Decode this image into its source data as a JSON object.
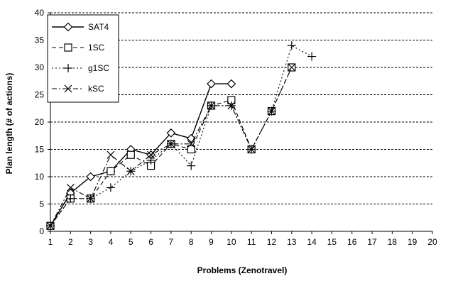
{
  "chart_data": {
    "type": "line",
    "xlabel": "Problems (Zenotravel)",
    "ylabel": "Plan length (# of actions)",
    "xlim": [
      1,
      20
    ],
    "ylim": [
      0,
      40
    ],
    "x_ticks": [
      1,
      2,
      3,
      4,
      5,
      6,
      7,
      8,
      9,
      10,
      11,
      12,
      13,
      14,
      15,
      16,
      17,
      18,
      19,
      20
    ],
    "y_ticks": [
      0,
      5,
      10,
      15,
      20,
      25,
      30,
      35,
      40
    ],
    "grid": "horizontal dashed",
    "legend_position": "top-left",
    "series": [
      {
        "name": "SAT4",
        "marker": "diamond",
        "line": "solid",
        "points": [
          [
            1,
            1
          ],
          [
            2,
            7
          ],
          [
            3,
            10
          ],
          [
            4,
            11
          ],
          [
            5,
            15
          ],
          [
            6,
            14
          ],
          [
            7,
            18
          ],
          [
            8,
            17
          ],
          [
            9,
            27
          ],
          [
            10,
            27
          ]
        ]
      },
      {
        "name": "1SC",
        "marker": "square",
        "line": "dashed",
        "points": [
          [
            1,
            1
          ],
          [
            2,
            6
          ],
          [
            3,
            6
          ],
          [
            4,
            11
          ],
          [
            5,
            14
          ],
          [
            6,
            12
          ],
          [
            7,
            16
          ],
          [
            8,
            15
          ],
          [
            9,
            23
          ],
          [
            10,
            24
          ],
          [
            11,
            15
          ],
          [
            12,
            22
          ],
          [
            13,
            30
          ]
        ]
      },
      {
        "name": "g1SC",
        "marker": "plus",
        "line": "dotted",
        "points": [
          [
            1,
            1
          ],
          [
            2,
            6
          ],
          [
            3,
            6
          ],
          [
            4,
            8
          ],
          [
            5,
            11
          ],
          [
            6,
            13
          ],
          [
            7,
            16
          ],
          [
            8,
            12
          ],
          [
            9,
            23
          ],
          [
            10,
            23
          ],
          [
            11,
            15
          ],
          [
            12,
            22
          ],
          [
            13,
            34
          ],
          [
            14,
            32
          ]
        ]
      },
      {
        "name": "kSC",
        "marker": "x",
        "line": "dashdot",
        "points": [
          [
            1,
            1
          ],
          [
            2,
            8
          ],
          [
            3,
            6
          ],
          [
            4,
            14
          ],
          [
            5,
            11
          ],
          [
            6,
            14
          ],
          [
            7,
            16
          ],
          [
            8,
            16
          ],
          [
            9,
            23
          ],
          [
            10,
            23
          ],
          [
            11,
            15
          ],
          [
            12,
            22
          ],
          [
            13,
            30
          ]
        ]
      }
    ]
  }
}
